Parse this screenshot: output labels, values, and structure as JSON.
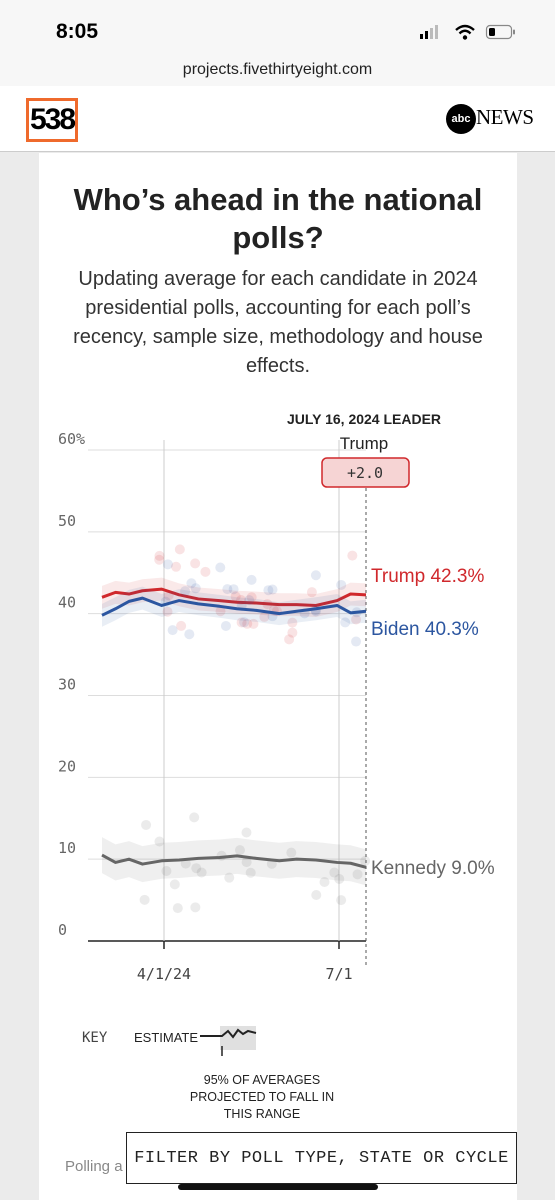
{
  "status": {
    "time": "8:05"
  },
  "browser": {
    "url": "projects.fivethirtyeight.com"
  },
  "header": {
    "logo": "538",
    "partner_logo": "abc",
    "partner_name": "NEWS"
  },
  "article": {
    "title": "Who’s ahead in the national polls?",
    "subtitle": "Updating average for each candidate in 2024 presidential polls, accounting for each poll’s recency, sample size, methodology and house effects."
  },
  "chart_data": {
    "type": "line",
    "leader_header": "JULY 16, 2024 LEADER",
    "leader_name": "Trump",
    "leader_margin": "+2.0",
    "y_ticks": [
      "60%",
      "50",
      "40",
      "30",
      "20",
      "10",
      "0"
    ],
    "ylim": [
      0,
      60
    ],
    "x_ticks": [
      "4/1/24",
      "7/1"
    ],
    "x_tick_days": [
      0,
      91
    ],
    "xlim": [
      "2024-03-01",
      "2024-07-16"
    ],
    "grid": true,
    "series": [
      {
        "name": "Trump",
        "end_label": "Trump 42.3%",
        "color": "#d0282c",
        "x": [
          "2024-03-01",
          "2024-03-08",
          "2024-03-15",
          "2024-03-22",
          "2024-04-01",
          "2024-04-10",
          "2024-04-20",
          "2024-05-01",
          "2024-05-10",
          "2024-05-20",
          "2024-06-01",
          "2024-06-10",
          "2024-06-20",
          "2024-07-01",
          "2024-07-08",
          "2024-07-16"
        ],
        "values": [
          42.0,
          42.6,
          42.4,
          42.8,
          43.0,
          42.3,
          41.8,
          41.6,
          41.4,
          41.3,
          41.1,
          41.1,
          41.0,
          41.6,
          42.4,
          42.3
        ]
      },
      {
        "name": "Biden",
        "end_label": "Biden 40.3%",
        "color": "#2c56a0",
        "x": [
          "2024-03-01",
          "2024-03-08",
          "2024-03-15",
          "2024-03-22",
          "2024-04-01",
          "2024-04-10",
          "2024-04-20",
          "2024-05-01",
          "2024-05-10",
          "2024-05-20",
          "2024-06-01",
          "2024-06-10",
          "2024-06-20",
          "2024-07-01",
          "2024-07-08",
          "2024-07-16"
        ],
        "values": [
          39.8,
          40.6,
          41.5,
          41.9,
          41.0,
          41.6,
          41.2,
          40.9,
          40.6,
          40.4,
          40.0,
          40.3,
          40.6,
          41.0,
          40.1,
          40.3
        ]
      },
      {
        "name": "Kennedy",
        "end_label": "Kennedy 9.0%",
        "color": "#666666",
        "x": [
          "2024-03-01",
          "2024-03-08",
          "2024-03-15",
          "2024-03-22",
          "2024-04-01",
          "2024-04-10",
          "2024-04-20",
          "2024-05-01",
          "2024-05-10",
          "2024-05-20",
          "2024-06-01",
          "2024-06-10",
          "2024-06-20",
          "2024-07-01",
          "2024-07-08",
          "2024-07-16"
        ],
        "values": [
          10.5,
          9.6,
          10.0,
          9.4,
          9.8,
          9.9,
          10.1,
          10.2,
          10.4,
          10.1,
          9.8,
          10.0,
          9.9,
          9.6,
          9.5,
          9.0
        ]
      }
    ]
  },
  "key": {
    "label": "KEY",
    "estimate": "ESTIMATE",
    "range_note": "95% OF AVERAGES PROJECTED TO FALL IN THIS RANGE"
  },
  "footer": {
    "filter_button": "FILTER BY POLL TYPE, STATE OR CYCLE",
    "section_label": "Polling a"
  }
}
